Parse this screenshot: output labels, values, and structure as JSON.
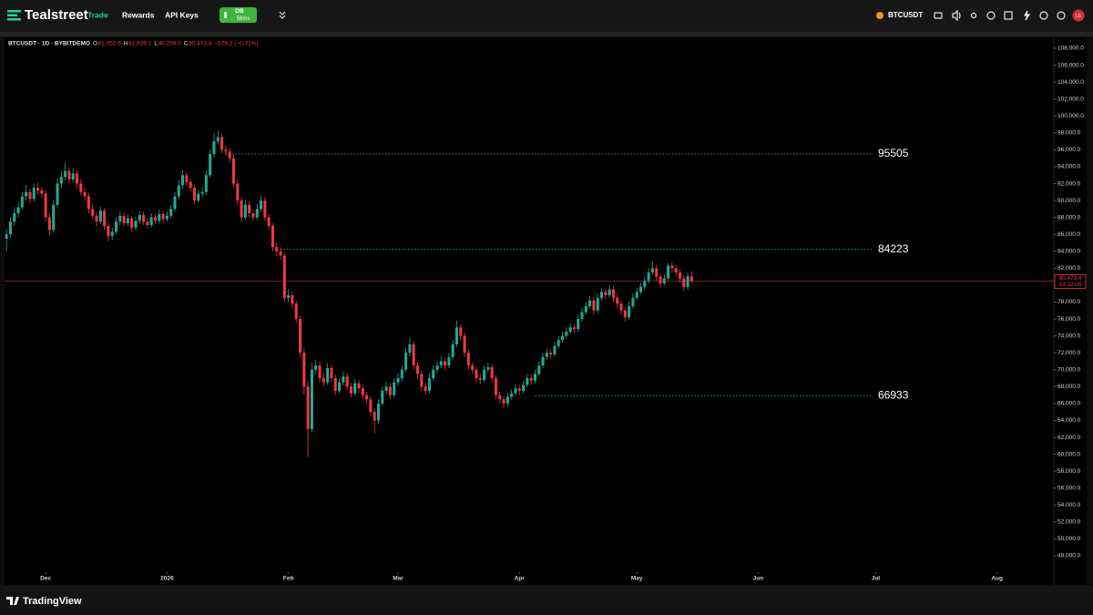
{
  "header": {
    "brand": "Tealstreet",
    "nav": [
      "Trade",
      "Rewards",
      "API Keys"
    ],
    "badge_title": "DB",
    "badge_latency": "56ms",
    "symbol": "BTCUSDT",
    "avatar": "LE"
  },
  "footer": {
    "brand": "TradingView"
  },
  "chart_data": {
    "type": "candlestick",
    "legend": {
      "symbol": "BTCUSDT · 1D · BYBITDEMO",
      "fields": [
        {
          "key": "O",
          "value": "81,052.6"
        },
        {
          "key": "H",
          "value": "81,639.1"
        },
        {
          "key": "L",
          "value": "80,258.0"
        },
        {
          "key": "C",
          "value": "80,473.4"
        }
      ],
      "change": "−579.2 (−0.71%)"
    },
    "price_label": "80,473.4",
    "countdown": "13:32:05",
    "up_color": "#22ab94",
    "down_color": "#f23645",
    "level_color": "#2e9e5e",
    "levels": [
      95505,
      84223,
      66933
    ],
    "xlim": [
      -0.5,
      267.5
    ],
    "xticks": [
      {
        "value": 10,
        "label": "Dec"
      },
      {
        "value": 41,
        "label": "2026"
      },
      {
        "value": 72,
        "label": "Feb"
      },
      {
        "value": 100,
        "label": "Mar"
      },
      {
        "value": 131,
        "label": "Apr"
      },
      {
        "value": 161,
        "label": "May"
      },
      {
        "value": 192,
        "label": "Jun"
      },
      {
        "value": 222,
        "label": "Jul"
      },
      {
        "value": 253,
        "label": "Aug"
      }
    ],
    "ylim": [
      46061,
      109185
    ],
    "yticks": [
      {
        "value": 48000,
        "label": "48,000.0"
      },
      {
        "value": 50000,
        "label": "50,000.0"
      },
      {
        "value": 52000,
        "label": "52,000.0"
      },
      {
        "value": 54000,
        "label": "54,000.0"
      },
      {
        "value": 56000,
        "label": "56,000.0"
      },
      {
        "value": 58000,
        "label": "58,000.0"
      },
      {
        "value": 60000,
        "label": "60,000.0"
      },
      {
        "value": 62000,
        "label": "62,000.0"
      },
      {
        "value": 64000,
        "label": "64,000.0"
      },
      {
        "value": 66000,
        "label": "66,000.0"
      },
      {
        "value": 68000,
        "label": "68,000.0"
      },
      {
        "value": 70000,
        "label": "70,000.0"
      },
      {
        "value": 72000,
        "label": "72,000.0"
      },
      {
        "value": 74000,
        "label": "74,000.0"
      },
      {
        "value": 76000,
        "label": "76,000.0"
      },
      {
        "value": 78000,
        "label": "78,000.0"
      },
      {
        "value": 80000,
        "label": "80,000.0"
      },
      {
        "value": 82000,
        "label": "82,000.0"
      },
      {
        "value": 84000,
        "label": "84,000.0"
      },
      {
        "value": 86000,
        "label": "86,000.0"
      },
      {
        "value": 88000,
        "label": "88,000.0"
      },
      {
        "value": 90000,
        "label": "90,000.0"
      },
      {
        "value": 92000,
        "label": "92,000.0"
      },
      {
        "value": 94000,
        "label": "94,000.0"
      },
      {
        "value": 96000,
        "label": "96,000.0"
      },
      {
        "value": 98000,
        "label": "98,000.0"
      },
      {
        "value": 100000,
        "label": "100,000.0"
      },
      {
        "value": 102000,
        "label": "102,000.0"
      },
      {
        "value": 104000,
        "label": "104,000.0"
      },
      {
        "value": 106000,
        "label": "106,000.0"
      },
      {
        "value": 108000,
        "label": "108,000.0"
      }
    ],
    "ohlc": [
      [
        85500,
        86600,
        84000,
        86000
      ],
      [
        86000,
        88000,
        85600,
        87500
      ],
      [
        87500,
        89200,
        87000,
        88500
      ],
      [
        88500,
        89800,
        88000,
        89200
      ],
      [
        89200,
        91000,
        88900,
        90500
      ],
      [
        90500,
        91800,
        90000,
        91000
      ],
      [
        91000,
        91400,
        89700,
        90200
      ],
      [
        90200,
        92000,
        89900,
        91500
      ],
      [
        91500,
        92100,
        90700,
        91200
      ],
      [
        91200,
        91600,
        90300,
        90800
      ],
      [
        90800,
        91200,
        87500,
        88000
      ],
      [
        88000,
        88500,
        85800,
        86500
      ],
      [
        86500,
        90000,
        86200,
        89500
      ],
      [
        89500,
        92600,
        89200,
        92000
      ],
      [
        92000,
        93500,
        91500,
        92800
      ],
      [
        92800,
        94500,
        92400,
        93500
      ],
      [
        93500,
        93900,
        92000,
        92500
      ],
      [
        92500,
        93800,
        92100,
        93200
      ],
      [
        93200,
        93600,
        91400,
        92000
      ],
      [
        92000,
        92500,
        90600,
        91000
      ],
      [
        91000,
        91500,
        90000,
        90500
      ],
      [
        90500,
        90900,
        88500,
        89000
      ],
      [
        89000,
        89600,
        87800,
        88200
      ],
      [
        88200,
        88600,
        86900,
        87500
      ],
      [
        87500,
        89300,
        87200,
        88800
      ],
      [
        88800,
        89100,
        86500,
        87000
      ],
      [
        87000,
        87400,
        85200,
        85800
      ],
      [
        85800,
        86800,
        85300,
        86300
      ],
      [
        86300,
        88000,
        86000,
        87500
      ],
      [
        87500,
        88700,
        87100,
        88200
      ],
      [
        88200,
        88600,
        86900,
        87300
      ],
      [
        87300,
        88400,
        87000,
        87900
      ],
      [
        87900,
        88200,
        86300,
        86800
      ],
      [
        86800,
        88100,
        86500,
        87600
      ],
      [
        87600,
        88800,
        87300,
        88300
      ],
      [
        88300,
        88700,
        87100,
        87500
      ],
      [
        87500,
        87900,
        86700,
        87100
      ],
      [
        87100,
        88500,
        86800,
        88000
      ],
      [
        88000,
        88400,
        87200,
        87600
      ],
      [
        87600,
        88900,
        87300,
        88400
      ],
      [
        88400,
        88800,
        87400,
        87800
      ],
      [
        87800,
        88700,
        87500,
        88200
      ],
      [
        88200,
        89500,
        87900,
        89000
      ],
      [
        89000,
        91000,
        88700,
        90500
      ],
      [
        90500,
        92400,
        90200,
        91800
      ],
      [
        91800,
        93600,
        91400,
        93000
      ],
      [
        93000,
        93400,
        91800,
        92200
      ],
      [
        92200,
        92600,
        91100,
        91500
      ],
      [
        91500,
        91900,
        89600,
        90000
      ],
      [
        90000,
        91300,
        89700,
        90800
      ],
      [
        90800,
        91600,
        90400,
        91000
      ],
      [
        91000,
        93600,
        90700,
        93000
      ],
      [
        93000,
        96000,
        92700,
        95500
      ],
      [
        95500,
        98000,
        95100,
        97000
      ],
      [
        97000,
        98200,
        96600,
        97500
      ],
      [
        97500,
        97900,
        95600,
        96000
      ],
      [
        96000,
        96500,
        95300,
        95800
      ],
      [
        95800,
        96200,
        94500,
        95000
      ],
      [
        95000,
        95400,
        91600,
        92000
      ],
      [
        92000,
        92500,
        89500,
        90000
      ],
      [
        90000,
        90400,
        87500,
        88000
      ],
      [
        88000,
        90000,
        87700,
        89500
      ],
      [
        89500,
        89900,
        88000,
        88500
      ],
      [
        88500,
        88900,
        87600,
        88000
      ],
      [
        88000,
        89600,
        87700,
        89000
      ],
      [
        89000,
        90600,
        88700,
        90000
      ],
      [
        90000,
        90400,
        87600,
        88000
      ],
      [
        88000,
        88400,
        86600,
        87000
      ],
      [
        87000,
        87300,
        84000,
        84500
      ],
      [
        84500,
        85000,
        83500,
        84000
      ],
      [
        84000,
        84500,
        83000,
        83500
      ],
      [
        83500,
        83900,
        78000,
        78500
      ],
      [
        78500,
        79500,
        78000,
        78800
      ],
      [
        78800,
        79200,
        77300,
        77800
      ],
      [
        77800,
        78200,
        75500,
        76000
      ],
      [
        76000,
        76400,
        71500,
        72000
      ],
      [
        72000,
        72500,
        67000,
        68000
      ],
      [
        68000,
        68600,
        59700,
        63000
      ],
      [
        63000,
        70800,
        62600,
        70000
      ],
      [
        70000,
        71200,
        69500,
        70500
      ],
      [
        70500,
        71000,
        68500,
        69000
      ],
      [
        69000,
        69600,
        68000,
        68500
      ],
      [
        68500,
        70800,
        68200,
        70200
      ],
      [
        70200,
        70600,
        68600,
        69000
      ],
      [
        69000,
        69400,
        67000,
        67500
      ],
      [
        67500,
        69000,
        67200,
        68500
      ],
      [
        68500,
        69800,
        68100,
        69200
      ],
      [
        69200,
        69600,
        67600,
        68000
      ],
      [
        68000,
        68400,
        66700,
        67200
      ],
      [
        67200,
        68900,
        66900,
        68400
      ],
      [
        68400,
        68800,
        67300,
        67800
      ],
      [
        67800,
        68200,
        66500,
        67000
      ],
      [
        67000,
        67400,
        66000,
        66500
      ],
      [
        66500,
        66900,
        64500,
        65000
      ],
      [
        65000,
        65400,
        62500,
        64000
      ],
      [
        64000,
        66500,
        63600,
        66000
      ],
      [
        66000,
        68000,
        65700,
        67500
      ],
      [
        67500,
        68600,
        67100,
        68000
      ],
      [
        68000,
        68400,
        66500,
        67000
      ],
      [
        67000,
        69000,
        66700,
        68500
      ],
      [
        68500,
        69600,
        68100,
        69000
      ],
      [
        69000,
        70500,
        68600,
        70000
      ],
      [
        70000,
        72600,
        69700,
        72000
      ],
      [
        72000,
        73800,
        71600,
        73000
      ],
      [
        73000,
        73400,
        70000,
        70500
      ],
      [
        70500,
        70900,
        69000,
        69500
      ],
      [
        69500,
        69900,
        67500,
        68000
      ],
      [
        68000,
        68400,
        67000,
        67500
      ],
      [
        67500,
        69500,
        67200,
        69000
      ],
      [
        69000,
        70500,
        68700,
        70000
      ],
      [
        70000,
        71000,
        69600,
        70500
      ],
      [
        70500,
        71600,
        70200,
        71000
      ],
      [
        71000,
        71400,
        70000,
        70500
      ],
      [
        70500,
        72000,
        70200,
        71500
      ],
      [
        71500,
        73500,
        71200,
        73000
      ],
      [
        73000,
        75800,
        72700,
        75000
      ],
      [
        75000,
        75400,
        73500,
        74000
      ],
      [
        74000,
        74400,
        71500,
        72000
      ],
      [
        72000,
        72400,
        70000,
        70500
      ],
      [
        70500,
        70900,
        69500,
        70000
      ],
      [
        70000,
        70400,
        68500,
        69000
      ],
      [
        69000,
        69500,
        68300,
        68800
      ],
      [
        68800,
        70500,
        68500,
        70000
      ],
      [
        70000,
        70800,
        69700,
        70300
      ],
      [
        70300,
        70700,
        68500,
        69000
      ],
      [
        69000,
        69400,
        66500,
        67000
      ],
      [
        67000,
        67400,
        66000,
        66500
      ],
      [
        66500,
        66900,
        65500,
        66000
      ],
      [
        66000,
        67300,
        65700,
        66800
      ],
      [
        66800,
        67700,
        66500,
        67200
      ],
      [
        67200,
        68300,
        66900,
        67800
      ],
      [
        67800,
        68200,
        67000,
        67500
      ],
      [
        67500,
        68700,
        67200,
        68200
      ],
      [
        68200,
        69500,
        67900,
        69000
      ],
      [
        69000,
        69400,
        68200,
        68700
      ],
      [
        68700,
        70000,
        68400,
        69500
      ],
      [
        69500,
        71000,
        69200,
        70500
      ],
      [
        70500,
        72000,
        70200,
        71500
      ],
      [
        71500,
        72500,
        71200,
        72000
      ],
      [
        72000,
        72400,
        71300,
        71800
      ],
      [
        71800,
        73300,
        71500,
        72800
      ],
      [
        72800,
        74000,
        72500,
        73500
      ],
      [
        73500,
        74500,
        73200,
        74000
      ],
      [
        74000,
        75000,
        73700,
        74500
      ],
      [
        74500,
        75500,
        74200,
        75000
      ],
      [
        75000,
        75400,
        74300,
        74800
      ],
      [
        74800,
        76500,
        74500,
        76000
      ],
      [
        76000,
        77300,
        75700,
        76800
      ],
      [
        76800,
        78000,
        76500,
        77500
      ],
      [
        77500,
        78700,
        77200,
        78200
      ],
      [
        78200,
        78600,
        76500,
        77000
      ],
      [
        77000,
        79000,
        76700,
        78500
      ],
      [
        78500,
        79700,
        78200,
        79200
      ],
      [
        79200,
        79600,
        78300,
        78800
      ],
      [
        78800,
        80000,
        78500,
        79500
      ],
      [
        79500,
        79900,
        78000,
        78500
      ],
      [
        78500,
        78900,
        77300,
        77800
      ],
      [
        77800,
        78200,
        76500,
        77000
      ],
      [
        77000,
        77400,
        75700,
        76200
      ],
      [
        76200,
        78000,
        75900,
        77500
      ],
      [
        77500,
        79000,
        77200,
        78500
      ],
      [
        78500,
        79700,
        78200,
        79200
      ],
      [
        79200,
        80300,
        78900,
        79800
      ],
      [
        79800,
        81000,
        79500,
        80500
      ],
      [
        80500,
        82000,
        80200,
        81500
      ],
      [
        81500,
        82800,
        81200,
        82000
      ],
      [
        82000,
        82400,
        80500,
        81000
      ],
      [
        81000,
        81400,
        79700,
        80200
      ],
      [
        80200,
        81300,
        79900,
        80800
      ],
      [
        80800,
        82600,
        80500,
        82300
      ],
      [
        82300,
        82700,
        81500,
        82000
      ],
      [
        82000,
        82400,
        81000,
        81500
      ],
      [
        81500,
        81900,
        80300,
        80800
      ],
      [
        80800,
        81200,
        79300,
        79800
      ],
      [
        79800,
        81500,
        79500,
        81052.6
      ],
      [
        81052.6,
        81639.1,
        80258,
        80473.4
      ]
    ]
  }
}
